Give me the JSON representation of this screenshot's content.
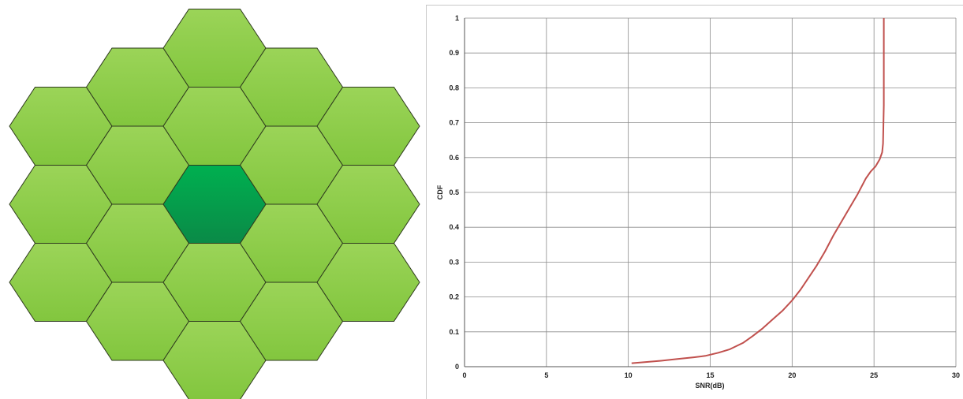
{
  "hex_diagram": {
    "cell_color": "#8ccd46",
    "center_cell_color": "#0aa04f",
    "edge_color": "#2e3a1e",
    "cell_count": 19
  },
  "chart_data": {
    "type": "line",
    "title": "",
    "xlabel": "SNR(dB)",
    "ylabel": "CDF",
    "xlim": [
      0,
      30
    ],
    "ylim": [
      0,
      1
    ],
    "x_ticks": [
      "0",
      "5",
      "10",
      "15",
      "20",
      "25",
      "30"
    ],
    "y_ticks": [
      "0",
      "0.1",
      "0.2",
      "0.3",
      "0.4",
      "0.5",
      "0.6",
      "0.7",
      "0.8",
      "0.9",
      "1"
    ],
    "grid": true,
    "line_color": "#c0504d",
    "series": [
      {
        "x": [
          10.2,
          11,
          12,
          13,
          14,
          14.7,
          15.5,
          16.2,
          17,
          17.6,
          18.2,
          18.8,
          19.4,
          20,
          20.5,
          21,
          21.5,
          22,
          22.5,
          23,
          23.5,
          24,
          24.5,
          24.8,
          25.1,
          25.35,
          25.5,
          25.55,
          25.6,
          25.6,
          25.6
        ],
        "y": [
          0.01,
          0.013,
          0.017,
          0.022,
          0.027,
          0.031,
          0.04,
          0.05,
          0.068,
          0.088,
          0.11,
          0.135,
          0.16,
          0.19,
          0.22,
          0.255,
          0.29,
          0.33,
          0.375,
          0.415,
          0.455,
          0.495,
          0.54,
          0.56,
          0.575,
          0.595,
          0.615,
          0.64,
          0.75,
          0.9,
          1.0
        ]
      }
    ]
  }
}
